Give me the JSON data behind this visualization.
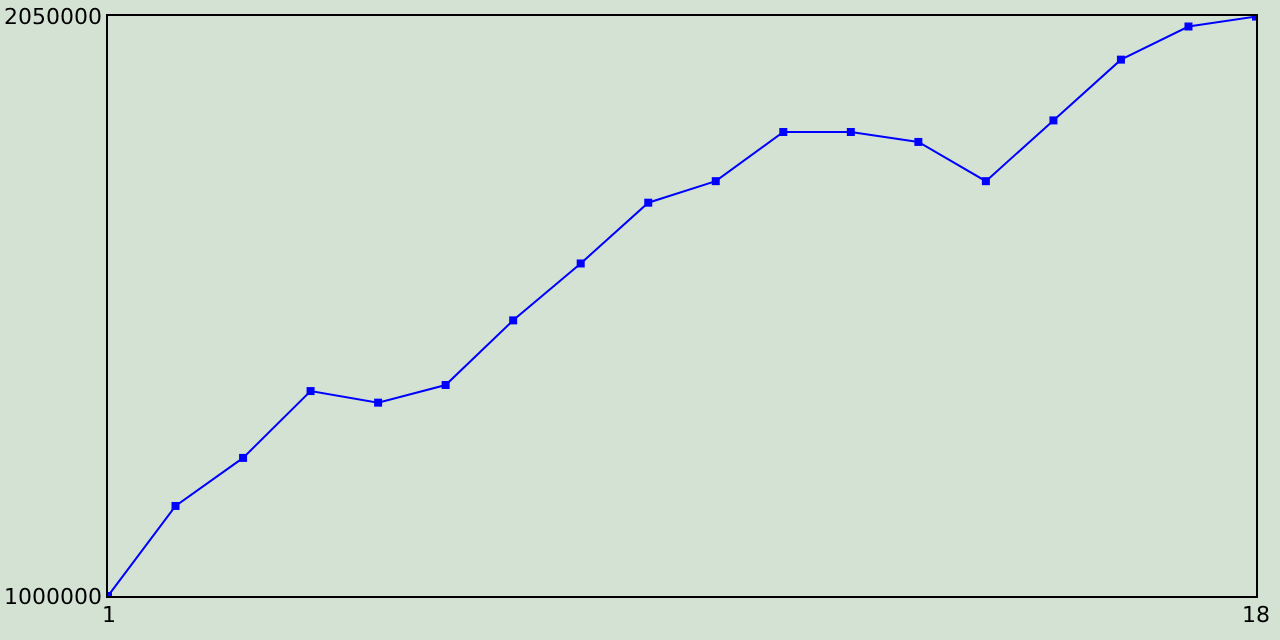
{
  "chart_data": {
    "type": "line",
    "x": [
      1,
      2,
      3,
      4,
      5,
      6,
      7,
      8,
      9,
      10,
      11,
      12,
      13,
      14,
      15,
      16,
      17,
      18
    ],
    "series": [
      {
        "color": "#0000ff",
        "values": [
          1000000,
          1163000,
          1250000,
          1371000,
          1350000,
          1382000,
          1499000,
          1602000,
          1712000,
          1751000,
          1840000,
          1840000,
          1822000,
          1751000,
          1861000,
          1971000,
          2031000,
          2049000
        ]
      }
    ],
    "xlim": [
      1,
      18
    ],
    "xticks": [
      1,
      18
    ],
    "ylim": [
      1000000,
      2050000
    ],
    "yticks": [
      1000000,
      2050000
    ],
    "marker": "square",
    "line_style": "solid"
  }
}
